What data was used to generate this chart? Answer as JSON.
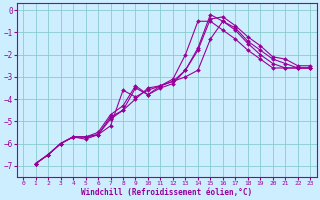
{
  "title": "",
  "xlabel": "Windchill (Refroidissement éolien,°C)",
  "ylabel": "",
  "xlim": [
    -0.5,
    23.5
  ],
  "ylim": [
    -7.5,
    0.3
  ],
  "yticks": [
    0,
    -1,
    -2,
    -3,
    -4,
    -5,
    -6,
    -7
  ],
  "xticks": [
    0,
    1,
    2,
    3,
    4,
    5,
    6,
    7,
    8,
    9,
    10,
    11,
    12,
    13,
    14,
    15,
    16,
    17,
    18,
    19,
    20,
    21,
    22,
    23
  ],
  "bg_color": "#cceeff",
  "grid_color": "#88cccc",
  "line_color": "#990099",
  "marker": "D",
  "markersize": 2,
  "linewidth": 0.8,
  "series": [
    {
      "x": [
        1,
        2,
        3,
        4,
        5,
        6,
        7,
        8,
        9,
        10,
        11,
        12,
        13,
        14,
        15,
        16,
        17,
        18,
        19,
        20,
        21,
        22,
        23
      ],
      "y": [
        -6.9,
        -6.5,
        -6.0,
        -5.7,
        -5.7,
        -5.6,
        -4.8,
        -4.5,
        -3.5,
        -3.8,
        -3.5,
        -3.3,
        -2.7,
        -1.8,
        -0.4,
        -0.3,
        -0.7,
        -1.2,
        -1.6,
        -2.1,
        -2.2,
        -2.5,
        -2.5
      ]
    },
    {
      "x": [
        1,
        2,
        3,
        4,
        5,
        6,
        7,
        8,
        9,
        10,
        11,
        12,
        13,
        14,
        15,
        16,
        17,
        18,
        19,
        20,
        21,
        22,
        23
      ],
      "y": [
        -6.9,
        -6.5,
        -6.0,
        -5.7,
        -5.7,
        -5.6,
        -4.9,
        -4.5,
        -4.0,
        -3.5,
        -3.4,
        -3.2,
        -3.0,
        -2.7,
        -1.3,
        -0.5,
        -0.8,
        -1.4,
        -1.8,
        -2.2,
        -2.4,
        -2.6,
        -2.6
      ]
    },
    {
      "x": [
        1,
        2,
        3,
        4,
        5,
        6,
        7,
        8,
        9,
        10,
        11,
        12,
        13,
        14,
        15,
        16,
        17,
        18,
        19,
        20,
        21,
        22,
        23
      ],
      "y": [
        -6.9,
        -6.5,
        -6.0,
        -5.7,
        -5.7,
        -5.5,
        -4.7,
        -4.3,
        -3.4,
        -3.8,
        -3.4,
        -3.2,
        -2.7,
        -1.7,
        -0.2,
        -0.5,
        -0.9,
        -1.5,
        -2.0,
        -2.4,
        -2.6,
        -2.6,
        -2.6
      ]
    },
    {
      "x": [
        1,
        2,
        3,
        4,
        5,
        6,
        7,
        8,
        9,
        10,
        11,
        12,
        13,
        14,
        15,
        16,
        17,
        18,
        19,
        20,
        21,
        22,
        23
      ],
      "y": [
        -6.9,
        -6.5,
        -6.0,
        -5.7,
        -5.8,
        -5.6,
        -5.2,
        -3.6,
        -3.9,
        -3.6,
        -3.4,
        -3.1,
        -2.0,
        -0.5,
        -0.5,
        -0.9,
        -1.3,
        -1.8,
        -2.2,
        -2.6,
        -2.6,
        -2.6,
        -2.6
      ]
    }
  ],
  "font_family": "monospace"
}
